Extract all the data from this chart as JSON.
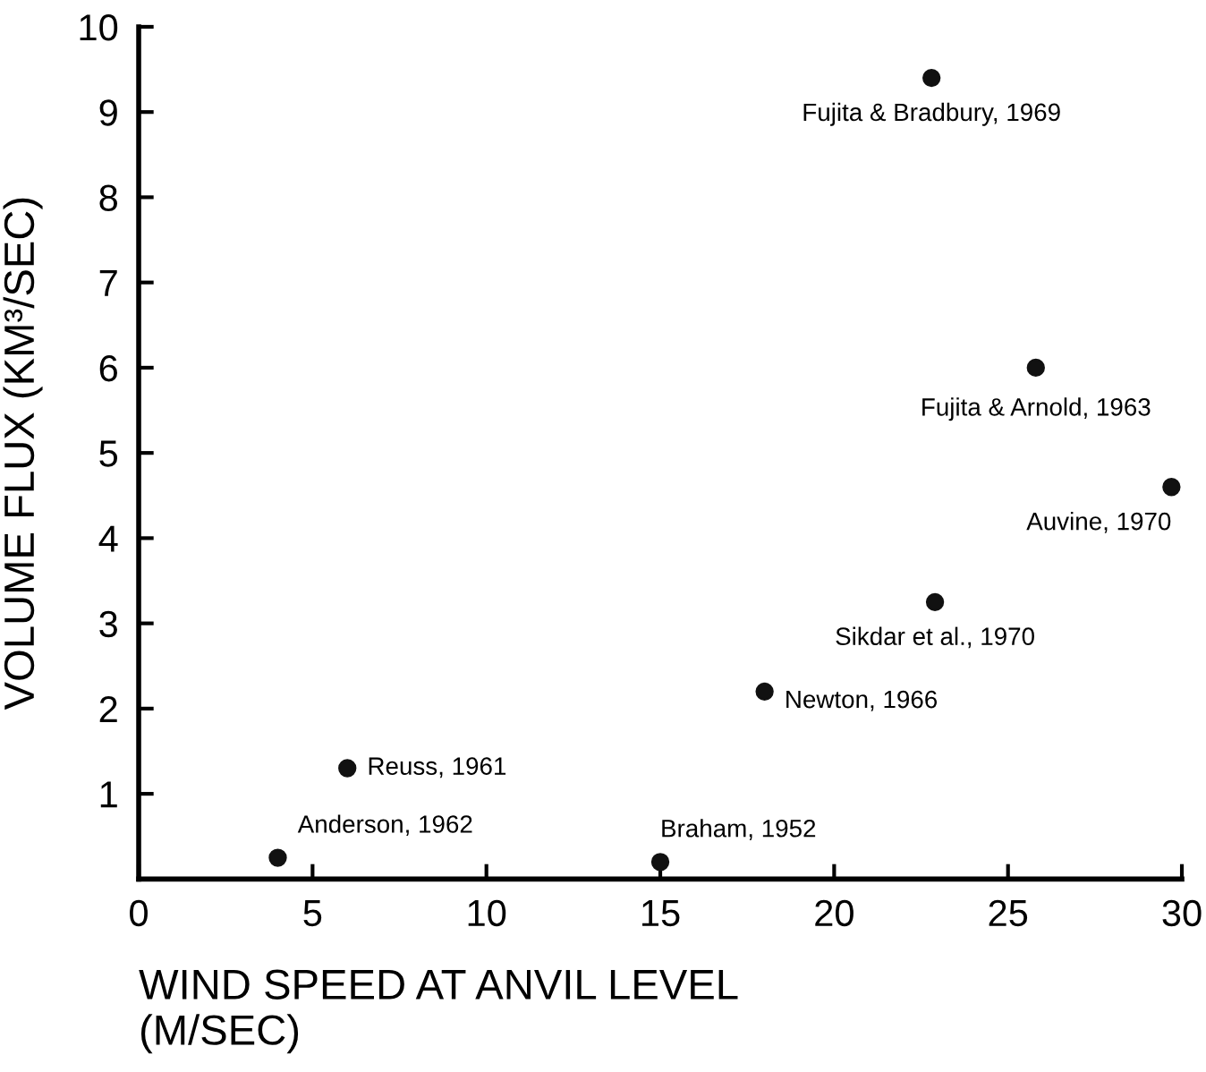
{
  "chart_data": {
    "type": "scatter",
    "xlabel": "WIND SPEED AT ANVIL LEVEL\n(M/SEC)",
    "ylabel": "VOLUME FLUX (KM³/SEC)",
    "x": [
      4,
      6,
      15,
      18,
      22.9,
      22.8,
      25.8,
      29.7
    ],
    "series": [
      {
        "color": "#111111",
        "values": [
          0.25,
          1.3,
          0.2,
          2.2,
          3.25,
          9.4,
          6.0,
          4.6
        ]
      }
    ],
    "marker": "circle",
    "grid": false,
    "legend": false,
    "xlim": [
      0,
      30
    ],
    "xticks": [
      0,
      5,
      10,
      15,
      20,
      25,
      30
    ],
    "ylim": [
      0,
      10
    ],
    "yticks": [
      1,
      2,
      3,
      4,
      5,
      6,
      7,
      8,
      9,
      10
    ],
    "annotations": [
      {
        "text": "Anderson, 1962",
        "x": 4,
        "y": 0.25
      },
      {
        "text": "Reuss, 1961",
        "x": 6,
        "y": 1.3
      },
      {
        "text": "Braham, 1952",
        "x": 15,
        "y": 0.2
      },
      {
        "text": "Newton, 1966",
        "x": 18,
        "y": 2.2
      },
      {
        "text": "Sikdar et al., 1970",
        "x": 22.9,
        "y": 3.25
      },
      {
        "text": "Fujita & Bradbury, 1969",
        "x": 22.8,
        "y": 9.4
      },
      {
        "text": "Fujita & Arnold, 1963",
        "x": 25.8,
        "y": 6.0
      },
      {
        "text": "Auvine, 1970",
        "x": 29.7,
        "y": 4.6
      }
    ]
  }
}
